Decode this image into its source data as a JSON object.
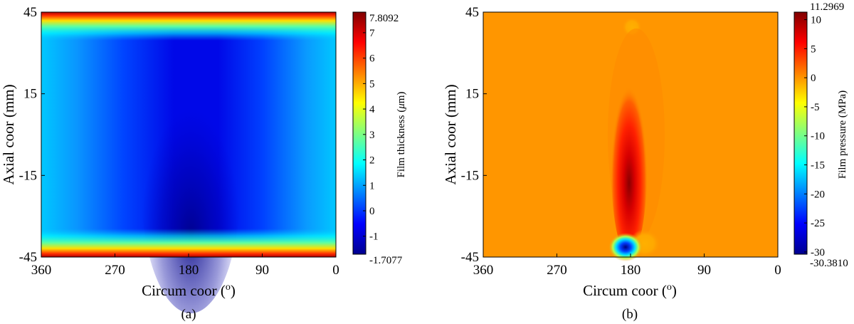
{
  "chart_data": [
    {
      "type": "heatmap",
      "panel_label": "(a)",
      "xlabel": "Circum coor (",
      "xlabel_sup": "o",
      "xlabel_end": ")",
      "ylabel": "Axial coor (mm)",
      "x_ticks": [
        "360",
        "270",
        "180",
        "90",
        "0"
      ],
      "y_ticks": [
        "45",
        "15",
        "-15",
        "-45"
      ],
      "xlim": [
        360,
        0
      ],
      "ylim": [
        -45,
        45
      ],
      "colorbar": {
        "label": "Film thickness (",
        "label_mu": "μ",
        "label_end": "m)",
        "min_label": "-1.7077",
        "max_label": "7.8092",
        "min": -1.7077,
        "max": 7.8092,
        "ticks": [
          "-1",
          "0",
          "1",
          "2",
          "3",
          "4",
          "5",
          "6",
          "7"
        ]
      }
    },
    {
      "type": "heatmap",
      "panel_label": "(b)",
      "xlabel": "Circum coor (",
      "xlabel_sup": "o",
      "xlabel_end": ")",
      "ylabel": "Axial coor (mm)",
      "x_ticks": [
        "360",
        "270",
        "180",
        "90",
        "0"
      ],
      "y_ticks": [
        "45",
        "15",
        "-15",
        "-45"
      ],
      "xlim": [
        360,
        0
      ],
      "ylim": [
        -45,
        45
      ],
      "colorbar": {
        "label": "Film pressure (MPa)",
        "min_label": "-30.3810",
        "max_label": "11.2969",
        "min": -30.381,
        "max": 11.2969,
        "ticks": [
          "-30",
          "-25",
          "-20",
          "-15",
          "-10",
          "-5",
          "0",
          "5",
          "10"
        ]
      }
    }
  ]
}
